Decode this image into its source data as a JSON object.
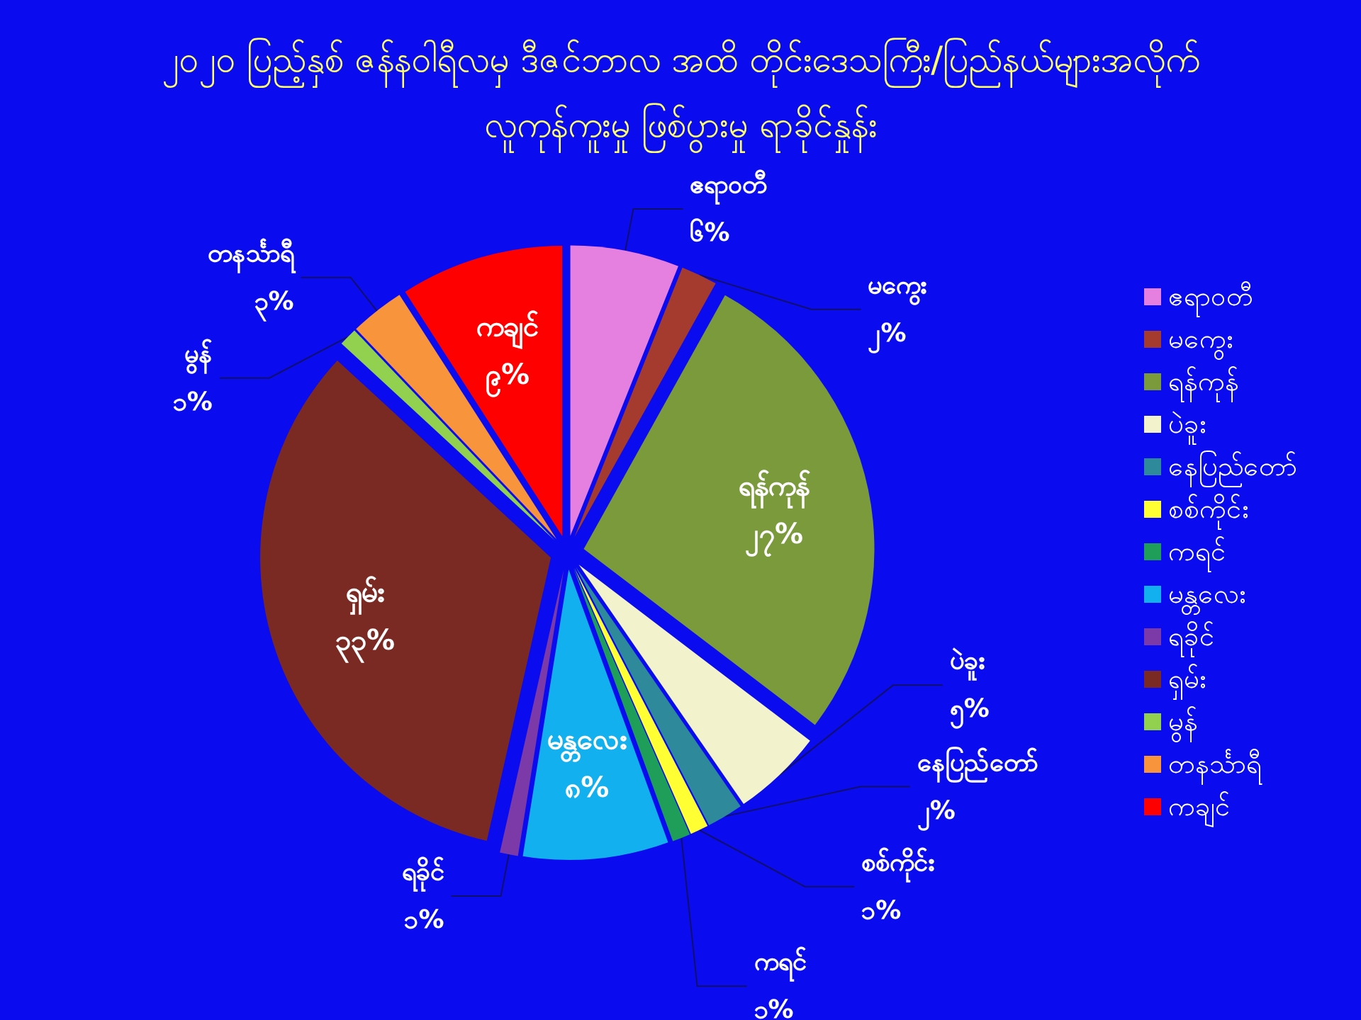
{
  "chart_data": {
    "type": "pie",
    "title": "၂၀၂၀ ပြည့်နှစ် ဇန်နဝါရီလမှ ဒီဇင်ဘာလ အထိ တိုင်းဒေသကြီး/ပြည်နယ်များအလိုက်\nလူကုန်ကူးမှု ဖြစ်ပွားမှု ရာခိုင်နှုန်း",
    "categories": [
      "ဧရာဝတီ",
      "မကွေး",
      "ရန်ကုန်",
      "ပဲခူး",
      "နေပြည်တော်",
      "စစ်ကိုင်း",
      "ကရင်",
      "မန္တလေး",
      "ရခိုင်",
      "ရှမ်း",
      "မွန်",
      "တနင်္သာရီ",
      "ကချင်"
    ],
    "values": [
      6,
      2,
      27,
      5,
      2,
      1,
      1,
      8,
      1,
      33,
      1,
      3,
      9
    ],
    "value_labels": [
      "၆%",
      "၂%",
      "၂၇%",
      "၅%",
      "၂%",
      "၁%",
      "၁%",
      "၈%",
      "၁%",
      "၃၃%",
      "၁%",
      "၃%",
      "၉%"
    ],
    "colors": [
      "#e57fe0",
      "#a53a2f",
      "#7a9a3c",
      "#f2f2cc",
      "#2e8a9a",
      "#ffff33",
      "#1f9e5a",
      "#12b0ef",
      "#7b3aa8",
      "#7a2a22",
      "#92d050",
      "#f7943c",
      "#ff0000"
    ],
    "legend": "right"
  }
}
